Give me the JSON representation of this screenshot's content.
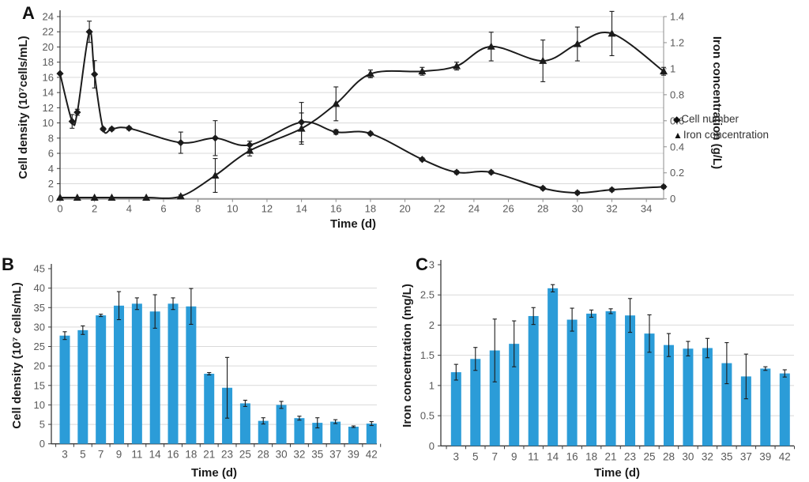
{
  "figure": {
    "panels": [
      {
        "label": "A"
      },
      {
        "label": "B"
      },
      {
        "label": "C"
      }
    ]
  },
  "colors": {
    "bar_fill": "#2b9cd8",
    "line": "#1b1b1b",
    "grid": "#d9d9d9",
    "axis": "#8c8c8c",
    "axis_baseline": "#9e9e9e",
    "tick_text": "#595959",
    "title_text": "#1a1a1a"
  },
  "chart_data": [
    {
      "id": "A",
      "type": "line",
      "xlabel": "Time (d)",
      "ylabel_left": "Cell density (10⁷cells/mL)",
      "ylabel_right": "Iron concentration (g/L)",
      "xlim": [
        0,
        35
      ],
      "xticks": [
        0,
        2,
        4,
        6,
        8,
        10,
        12,
        14,
        16,
        18,
        20,
        22,
        24,
        26,
        28,
        30,
        32,
        34
      ],
      "ylim_left": [
        0,
        24
      ],
      "yticks_left": [
        0,
        2,
        4,
        6,
        8,
        10,
        12,
        14,
        16,
        18,
        20,
        22,
        24
      ],
      "ylim_right": [
        0,
        1.4
      ],
      "yticks_right": [
        0,
        0.2,
        0.4,
        0.6,
        0.8,
        1,
        1.2,
        1.4
      ],
      "grid": true,
      "legend_position": "right",
      "legend": [
        {
          "marker_glyph": "◆",
          "label": "Cell number"
        },
        {
          "marker_glyph": "▲",
          "label": "Iron concentration"
        }
      ],
      "series": [
        {
          "name": "Cell number",
          "axis": "left",
          "marker": "diamond",
          "x": [
            0,
            0.7,
            1,
            1.7,
            2,
            2.5,
            3,
            4,
            7,
            9,
            11,
            14,
            16,
            18,
            21,
            23,
            25,
            28,
            30,
            32,
            35
          ],
          "y": [
            16.5,
            10.2,
            11.4,
            22.0,
            16.4,
            9.2,
            9.2,
            9.3,
            7.4,
            8.0,
            7.1,
            10.1,
            8.8,
            8.6,
            5.2,
            3.5,
            3.5,
            1.4,
            0.8,
            1.2,
            1.6
          ],
          "err": [
            0,
            0.9,
            0.4,
            1.4,
            1.8,
            0.2,
            0.2,
            0.2,
            1.4,
            2.3,
            0.5,
            2.6,
            0.3,
            0.2,
            0.2,
            0.2,
            0.2,
            0.2,
            0.2,
            0.2,
            0.2
          ]
        },
        {
          "name": "Iron concentration",
          "axis": "right",
          "marker": "triangle",
          "x": [
            0,
            1,
            2,
            3,
            5,
            7,
            9,
            11,
            14,
            16,
            18,
            21,
            23,
            25,
            28,
            30,
            32,
            35
          ],
          "y": [
            0.01,
            0.01,
            0.01,
            0.01,
            0.01,
            0.02,
            0.18,
            0.37,
            0.54,
            0.73,
            0.96,
            0.98,
            1.02,
            1.17,
            1.06,
            1.19,
            1.27,
            0.98
          ],
          "err": [
            0,
            0,
            0,
            0,
            0,
            0.01,
            0.13,
            0.04,
            0.12,
            0.13,
            0.03,
            0.03,
            0.03,
            0.11,
            0.16,
            0.13,
            0.17,
            0.03
          ]
        }
      ]
    },
    {
      "id": "B",
      "type": "bar",
      "xlabel": "Time (d)",
      "ylabel": "Cell density (10⁷ cells/mL)",
      "categories": [
        "3",
        "5",
        "7",
        "9",
        "11",
        "14",
        "16",
        "18",
        "21",
        "23",
        "25",
        "28",
        "30",
        "32",
        "35",
        "37",
        "39",
        "42"
      ],
      "values": [
        27.8,
        29.2,
        33.0,
        35.5,
        36.0,
        34.0,
        36.0,
        35.3,
        18.0,
        14.4,
        10.4,
        5.9,
        10.0,
        6.6,
        5.4,
        5.7,
        4.4,
        5.2
      ],
      "errors": [
        1.0,
        1.1,
        0.3,
        3.6,
        1.5,
        4.3,
        1.5,
        4.6,
        0.3,
        7.8,
        0.8,
        0.8,
        0.9,
        0.5,
        1.3,
        0.5,
        0.2,
        0.5
      ],
      "ylim": [
        0,
        45
      ],
      "yticks": [
        0,
        5,
        10,
        15,
        20,
        25,
        30,
        35,
        40,
        45
      ],
      "grid": true
    },
    {
      "id": "C",
      "type": "bar",
      "xlabel": "Time (d)",
      "ylabel": "Iron concentration (mg/L)",
      "categories": [
        "3",
        "5",
        "7",
        "9",
        "11",
        "14",
        "16",
        "18",
        "21",
        "23",
        "25",
        "28",
        "30",
        "32",
        "35",
        "37",
        "39",
        "42"
      ],
      "values": [
        1.22,
        1.44,
        1.58,
        1.69,
        2.15,
        2.61,
        2.09,
        2.19,
        2.23,
        2.16,
        1.86,
        1.67,
        1.61,
        1.62,
        1.37,
        1.15,
        1.28,
        1.2
      ],
      "errors": [
        0.13,
        0.19,
        0.52,
        0.38,
        0.14,
        0.06,
        0.19,
        0.06,
        0.04,
        0.28,
        0.31,
        0.19,
        0.12,
        0.16,
        0.34,
        0.37,
        0.03,
        0.06
      ],
      "ylim": [
        0,
        3
      ],
      "yticks": [
        0,
        0.5,
        1,
        1.5,
        2,
        2.5,
        3
      ],
      "grid": true
    }
  ]
}
